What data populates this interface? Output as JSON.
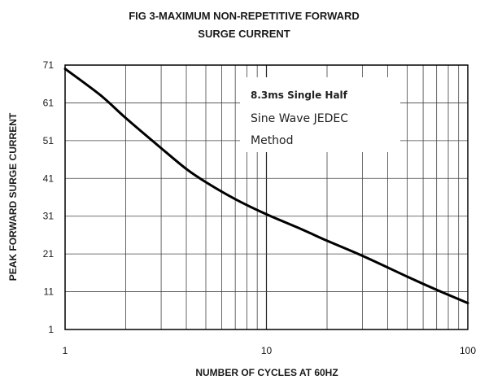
{
  "chart_data": {
    "type": "line",
    "title_line1": "FIG 3-MAXIMUM  NON-REPETITIVE FORWARD",
    "title_line2": "SURGE CURRENT",
    "xlabel": "NUMBER OF CYCLES AT 60HZ",
    "ylabel": "PEAK FORWARD SURGE CURRENT",
    "x_scale": "log",
    "xlim": [
      1,
      100
    ],
    "ylim": [
      1,
      71
    ],
    "x_ticks": [
      {
        "value": 1,
        "label": "1"
      },
      {
        "value": 10,
        "label": "10"
      },
      {
        "value": 100,
        "label": "100"
      }
    ],
    "y_ticks": [
      {
        "value": 1,
        "label": "1"
      },
      {
        "value": 11,
        "label": "11"
      },
      {
        "value": 21,
        "label": "21"
      },
      {
        "value": 31,
        "label": "31"
      },
      {
        "value": 41,
        "label": "41"
      },
      {
        "value": 51,
        "label": "51"
      },
      {
        "value": 61,
        "label": "61"
      },
      {
        "value": 71,
        "label": "71"
      }
    ],
    "grid": true,
    "annotation": [
      "8.3ms  Single  Half",
      "Sine Wave JEDEC",
      "Method"
    ],
    "series": [
      {
        "x": [
          1,
          1.5,
          2,
          3,
          4,
          5,
          7,
          10,
          15,
          20,
          30,
          50,
          70,
          100
        ],
        "values": [
          70,
          63,
          57,
          49,
          43.5,
          40,
          35.5,
          31.5,
          27.5,
          24.5,
          20.5,
          15,
          11.5,
          8
        ]
      }
    ]
  }
}
